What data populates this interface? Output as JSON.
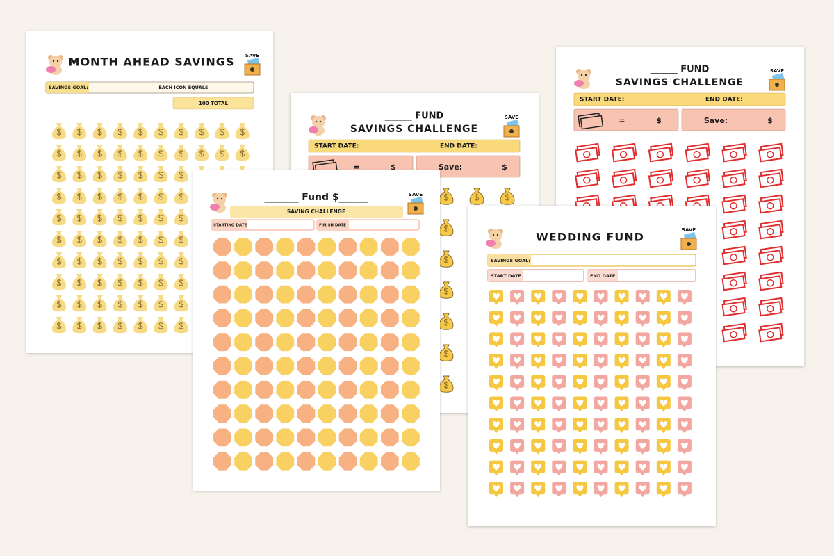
{
  "pages": [
    {
      "title": "MONTH AHEAD SAVINGS",
      "badge": "SAVE",
      "goal_label": "SAVINGS GOAL:",
      "icon_label": "EACH ICON EQUALS",
      "total": "100 TOTAL"
    },
    {
      "title_line1": "______ FUND",
      "title_line2": "SAVINGS CHALLENGE",
      "badge": "SAVE",
      "start_label": "START DATE:",
      "end_label": "END DATE:",
      "equals": "=",
      "currency": "$",
      "save_label": "Save:",
      "save_currency": "$"
    },
    {
      "title_line1": "______ FUND",
      "title_line2": "SAVINGS CHALLENGE",
      "badge": "SAVE",
      "start_label": "START DATE:",
      "end_label": "END DATE:",
      "equals": "=",
      "currency": "$",
      "save_label": "Save:",
      "save_currency": "$"
    },
    {
      "title": "_______ Fund $______",
      "badge": "SAVE",
      "subtitle": "SAVING CHALLENGE",
      "start_label": "STARTING DATE",
      "finish_label": "FINISH DATE"
    },
    {
      "title": "WEDDING FUND",
      "badge": "SAVE",
      "goal_label": "SAVINGS GOAL:",
      "start_label": "START DATE",
      "end_label": "END DATE"
    }
  ]
}
